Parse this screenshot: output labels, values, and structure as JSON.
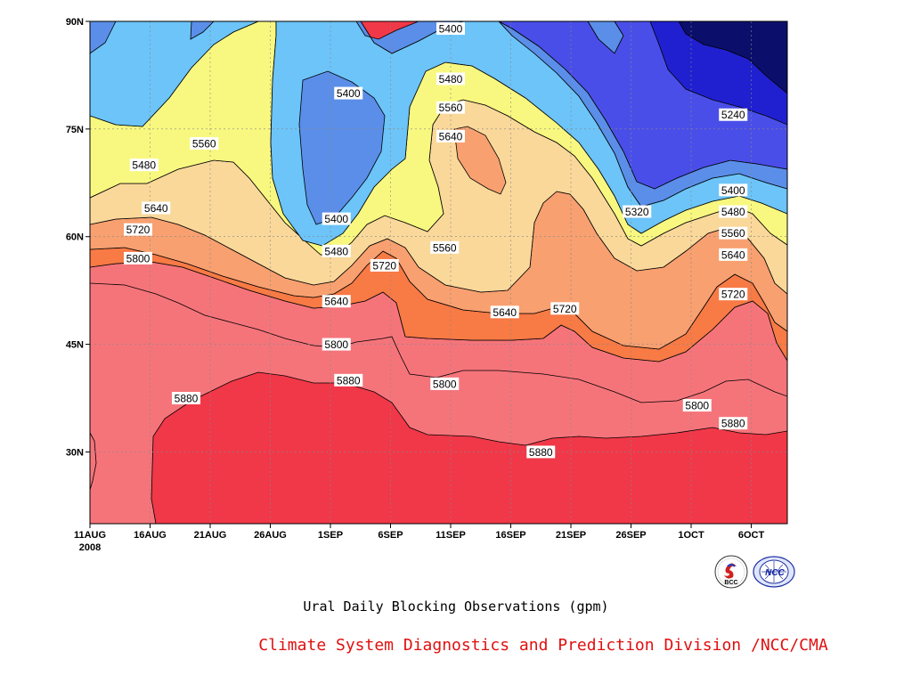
{
  "chart_data": {
    "type": "heatmap",
    "subtype": "filled-contour time-latitude section",
    "title": "Ural Daily Blocking Observations (gpm)",
    "year_label": "2008",
    "x_tick_labels": [
      "11AUG",
      "16AUG",
      "21AUG",
      "26AUG",
      "1SEP",
      "6SEP",
      "11SEP",
      "16SEP",
      "21SEP",
      "26SEP",
      "1OCT",
      "6OCT"
    ],
    "y_tick_labels": [
      "30N",
      "45N",
      "60N",
      "75N",
      "90N"
    ],
    "y_ticks": [
      30,
      45,
      60,
      75,
      90
    ],
    "xlim_days": [
      0,
      58
    ],
    "ylim": [
      20,
      90
    ],
    "grid": true,
    "contour_levels": [
      5240,
      5320,
      5400,
      5480,
      5560,
      5640,
      5720,
      5800,
      5880
    ],
    "band_colors": [
      "#0b0f6b",
      "#2020d0",
      "#4a4ee8",
      "#5a8ee8",
      "#6cc4f8",
      "#f8f880",
      "#fad89a",
      "#f8a070",
      "#f87a45",
      "#f5747a",
      "#f03848"
    ],
    "contour_labels": [
      {
        "day": 30,
        "lat": 89,
        "v": 5400
      },
      {
        "day": 30,
        "lat": 82,
        "v": 5480
      },
      {
        "day": 30,
        "lat": 78,
        "v": 5560
      },
      {
        "day": 21.5,
        "lat": 80,
        "v": 5400
      },
      {
        "day": 9.5,
        "lat": 73,
        "v": 5560
      },
      {
        "day": 4.5,
        "lat": 70,
        "v": 5480
      },
      {
        "day": 5.5,
        "lat": 64,
        "v": 5640
      },
      {
        "day": 4,
        "lat": 61,
        "v": 5720
      },
      {
        "day": 4,
        "lat": 57,
        "v": 5800
      },
      {
        "day": 8,
        "lat": 37.5,
        "v": 5880
      },
      {
        "day": 30,
        "lat": 74,
        "v": 5640
      },
      {
        "day": 20.5,
        "lat": 62.5,
        "v": 5400
      },
      {
        "day": 20.5,
        "lat": 58,
        "v": 5480
      },
      {
        "day": 20.5,
        "lat": 51,
        "v": 5640
      },
      {
        "day": 24.5,
        "lat": 56,
        "v": 5720
      },
      {
        "day": 29.5,
        "lat": 58.5,
        "v": 5560
      },
      {
        "day": 34.5,
        "lat": 49.5,
        "v": 5640
      },
      {
        "day": 39.5,
        "lat": 50,
        "v": 5720
      },
      {
        "day": 20.5,
        "lat": 45,
        "v": 5800
      },
      {
        "day": 21.5,
        "lat": 40,
        "v": 5880
      },
      {
        "day": 29.5,
        "lat": 39.5,
        "v": 5800
      },
      {
        "day": 37.5,
        "lat": 30,
        "v": 5880
      },
      {
        "day": 45.5,
        "lat": 63.5,
        "v": 5320
      },
      {
        "day": 50.5,
        "lat": 36.5,
        "v": 5800
      },
      {
        "day": 53.5,
        "lat": 77,
        "v": 5240
      },
      {
        "day": 53.5,
        "lat": 66.5,
        "v": 5400
      },
      {
        "day": 53.5,
        "lat": 63.5,
        "v": 5480
      },
      {
        "day": 53.5,
        "lat": 60.5,
        "v": 5560
      },
      {
        "day": 53.5,
        "lat": 57.5,
        "v": 5640
      },
      {
        "day": 53.5,
        "lat": 52,
        "v": 5720
      },
      {
        "day": 53.5,
        "lat": 34,
        "v": 5880
      }
    ]
  },
  "footer": {
    "credit": "Climate System Diagnostics and Prediction Division /NCC/CMA",
    "credit_color": "#e01010",
    "logo_bcc_text": "BCC",
    "logo_ncc_text": "NCC"
  }
}
